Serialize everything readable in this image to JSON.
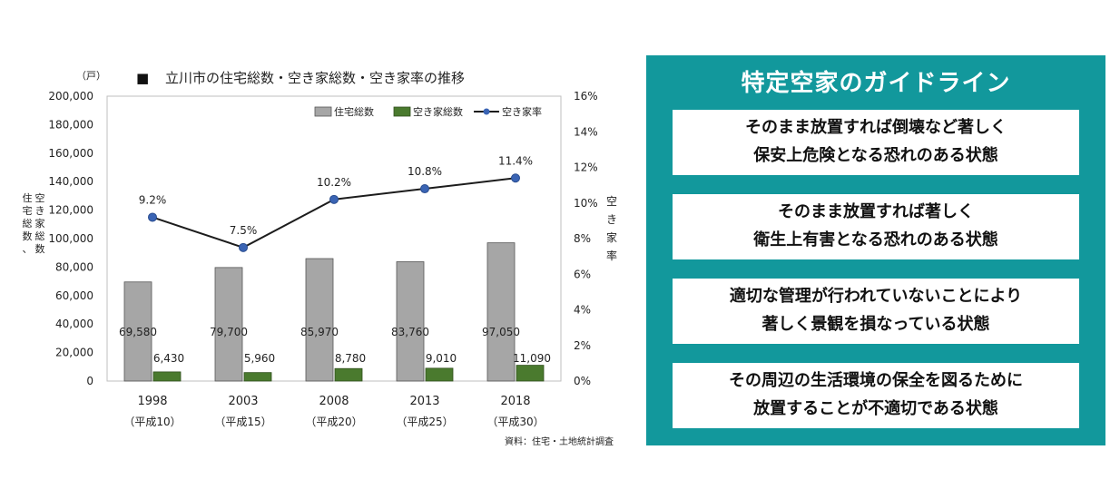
{
  "chart_data": {
    "type": "bar",
    "title": "立川市の住宅総数・空き家総数・空き家率の推移",
    "title_marker": "■",
    "y_unit": "（戸）",
    "ylabel_left_lines": [
      "住宅総数、",
      "空き家総数"
    ],
    "ylabel_right": "空き家率",
    "ylim": [
      0,
      200000
    ],
    "ylim_right": [
      0,
      16
    ],
    "y_ticks": [
      "0",
      "20,000",
      "40,000",
      "60,000",
      "80,000",
      "100,000",
      "120,000",
      "140,000",
      "160,000",
      "180,000",
      "200,000"
    ],
    "y_ticks_right": [
      "0%",
      "2%",
      "4%",
      "6%",
      "8%",
      "10%",
      "12%",
      "14%",
      "16%"
    ],
    "categories": [
      {
        "year": "1998",
        "era": "（平成10）"
      },
      {
        "year": "2003",
        "era": "（平成15）"
      },
      {
        "year": "2008",
        "era": "（平成20）"
      },
      {
        "year": "2013",
        "era": "（平成25）"
      },
      {
        "year": "2018",
        "era": "（平成30）"
      }
    ],
    "series": [
      {
        "name": "住宅総数",
        "type": "bar",
        "color": "#a6a6a6",
        "values": [
          69580,
          79700,
          85970,
          83760,
          97050
        ],
        "labels": [
          "69,580",
          "79,700",
          "85,970",
          "83,760",
          "97,050"
        ]
      },
      {
        "name": "空き家総数",
        "type": "bar",
        "color": "#4a7a2e",
        "values": [
          6430,
          5960,
          8780,
          9010,
          11090
        ],
        "labels": [
          "6,430",
          "5,960",
          "8,780",
          "9,010",
          "11,090"
        ]
      },
      {
        "name": "空き家率",
        "type": "line",
        "axis": "right",
        "color": "#1c1c1c",
        "marker_color": "#3a64b4",
        "values": [
          9.2,
          7.5,
          10.2,
          10.8,
          11.4
        ],
        "labels": [
          "9.2%",
          "7.5%",
          "10.2%",
          "10.8%",
          "11.4%"
        ]
      }
    ],
    "source": "資料：住宅・土地統計調査",
    "legend_position": "top-right",
    "grid": false
  },
  "guideline": {
    "title": "特定空家のガイドライン",
    "items": [
      {
        "line1": "そのまま放置すれば倒壊など著しく",
        "line2": "保安上危険となる恐れのある状態"
      },
      {
        "line1": "そのまま放置すれば著しく",
        "line2": "衛生上有害となる恐れのある状態"
      },
      {
        "line1": "適切な管理が行われていないことにより",
        "line2": "著しく景観を損なっている状態"
      },
      {
        "line1": "その周辺の生活環境の保全を図るために",
        "line2": "放置することが不適切である状態"
      }
    ]
  }
}
